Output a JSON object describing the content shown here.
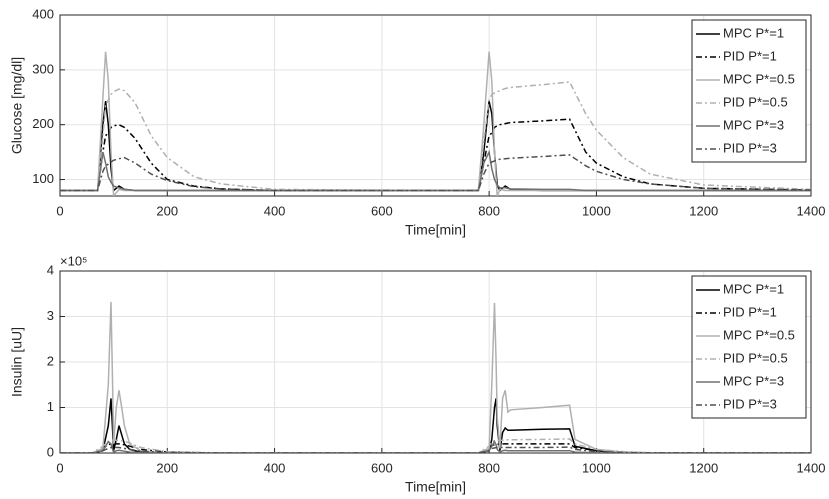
{
  "chart_data": [
    {
      "type": "line",
      "x_label": "Time[min]",
      "y_label": "Glucose [mg/dl]",
      "x": [
        0,
        70,
        80,
        85,
        90,
        95,
        100,
        110,
        120,
        140,
        170,
        200,
        250,
        300,
        400,
        700,
        780,
        790,
        800,
        805,
        810,
        815,
        820,
        830,
        840,
        900,
        950,
        980,
        1000,
        1050,
        1100,
        1200,
        1400
      ],
      "xlim": [
        0,
        1400
      ],
      "xticks": [
        0,
        200,
        400,
        600,
        800,
        1000,
        1200,
        1400
      ],
      "ylim": [
        70,
        400
      ],
      "yticks": [
        100,
        200,
        300,
        400
      ],
      "grid": true,
      "legend": "upper right",
      "series": [
        {
          "name": "MPC P*=1",
          "color": "#000000",
          "line_style": "solid",
          "values": [
            80,
            80,
            200,
            243,
            200,
            120,
            80,
            88,
            82,
            80,
            80,
            80,
            80,
            80,
            80,
            80,
            80,
            150,
            243,
            220,
            150,
            90,
            80,
            88,
            82,
            80,
            80,
            80,
            80,
            80,
            80,
            80,
            80
          ]
        },
        {
          "name": "PID P*=1",
          "color": "#000000",
          "line_style": "dashdot",
          "values": [
            80,
            80,
            150,
            180,
            185,
            195,
            198,
            200,
            195,
            175,
            130,
            100,
            88,
            83,
            80,
            80,
            80,
            130,
            180,
            185,
            195,
            198,
            200,
            202,
            204,
            207,
            210,
            150,
            130,
            105,
            92,
            84,
            81
          ]
        },
        {
          "name": "MPC P*=0.5",
          "color": "#b0b0b0",
          "line_style": "solid",
          "values": [
            80,
            80,
            250,
            333,
            280,
            150,
            70,
            82,
            80,
            80,
            80,
            80,
            80,
            80,
            80,
            80,
            80,
            200,
            333,
            280,
            150,
            70,
            82,
            80,
            80,
            80,
            80,
            80,
            80,
            80,
            80,
            80,
            80
          ]
        },
        {
          "name": "PID P*=0.5",
          "color": "#b0b0b0",
          "line_style": "dashdot",
          "values": [
            80,
            80,
            180,
            235,
            245,
            255,
            260,
            265,
            262,
            240,
            180,
            140,
            105,
            92,
            82,
            80,
            80,
            170,
            245,
            255,
            258,
            260,
            262,
            266,
            268,
            273,
            278,
            220,
            190,
            140,
            110,
            90,
            82
          ]
        },
        {
          "name": "MPC P*=3",
          "color": "#707070",
          "line_style": "solid",
          "values": [
            80,
            80,
            150,
            130,
            105,
            95,
            88,
            85,
            82,
            80,
            80,
            80,
            80,
            80,
            80,
            80,
            80,
            130,
            150,
            120,
            100,
            90,
            85,
            85,
            83,
            82,
            82,
            80,
            80,
            80,
            80,
            80,
            80
          ]
        },
        {
          "name": "PID P*=3",
          "color": "#505050",
          "line_style": "dashdot",
          "values": [
            80,
            80,
            115,
            125,
            128,
            132,
            135,
            138,
            140,
            130,
            110,
            98,
            87,
            83,
            80,
            80,
            80,
            110,
            130,
            132,
            134,
            136,
            137,
            138,
            139,
            142,
            145,
            125,
            115,
            100,
            92,
            84,
            81
          ]
        }
      ]
    },
    {
      "type": "line",
      "x_label": "Time[min]",
      "y_label": "Insulin [uU]",
      "y_exponent": "×10⁵",
      "x": [
        0,
        60,
        80,
        90,
        95,
        98,
        100,
        105,
        110,
        115,
        120,
        130,
        150,
        200,
        300,
        780,
        800,
        805,
        810,
        813,
        815,
        820,
        825,
        830,
        835,
        840,
        900,
        950,
        960,
        1000,
        1050,
        1100,
        1400
      ],
      "xlim": [
        0,
        1400
      ],
      "xticks": [
        0,
        200,
        400,
        600,
        800,
        1000,
        1200,
        1400
      ],
      "ylim": [
        0,
        400000
      ],
      "yticks": [
        {
          "value": 0,
          "label": "0"
        },
        {
          "value": 100000,
          "label": "1"
        },
        {
          "value": 200000,
          "label": "2"
        },
        {
          "value": 300000,
          "label": "3"
        },
        {
          "value": 400000,
          "label": "4"
        }
      ],
      "grid": true,
      "legend": "upper right",
      "series": [
        {
          "name": "MPC P*=1",
          "color": "#000000",
          "line_style": "solid",
          "values": [
            0,
            0,
            5000,
            60000,
            120000,
            50000,
            5000,
            30000,
            60000,
            40000,
            20000,
            8000,
            2000,
            0,
            0,
            0,
            5000,
            30000,
            100000,
            120000,
            60000,
            5000,
            45000,
            55000,
            50000,
            50000,
            52000,
            53000,
            15000,
            5000,
            1000,
            0,
            0
          ]
        },
        {
          "name": "PID P*=1",
          "color": "#000000",
          "line_style": "dashdot",
          "values": [
            0,
            0,
            10000,
            18000,
            20000,
            20000,
            20000,
            20000,
            20000,
            19000,
            18000,
            15000,
            8000,
            2000,
            0,
            0,
            10000,
            17000,
            18000,
            19000,
            19000,
            20000,
            20000,
            20000,
            20000,
            20000,
            20000,
            20000,
            12000,
            5000,
            2000,
            500,
            0
          ]
        },
        {
          "name": "MPC P*=0.5",
          "color": "#b0b0b0",
          "line_style": "solid",
          "values": [
            0,
            0,
            10000,
            150000,
            332000,
            150000,
            20000,
            100000,
            138000,
            100000,
            60000,
            20000,
            5000,
            0,
            0,
            0,
            10000,
            150000,
            330000,
            200000,
            80000,
            10000,
            120000,
            138000,
            90000,
            95000,
            100000,
            105000,
            30000,
            8000,
            2000,
            0,
            0
          ]
        },
        {
          "name": "PID P*=0.5",
          "color": "#b0b0b0",
          "line_style": "dashdot",
          "values": [
            0,
            0,
            15000,
            25000,
            28000,
            28000,
            28000,
            28000,
            28000,
            27000,
            26000,
            22000,
            12000,
            3000,
            0,
            0,
            15000,
            25000,
            27000,
            28000,
            28000,
            28000,
            28000,
            29000,
            29000,
            29000,
            30000,
            31000,
            20000,
            8000,
            3000,
            500,
            0
          ]
        },
        {
          "name": "MPC P*=3",
          "color": "#707070",
          "line_style": "solid",
          "values": [
            0,
            0,
            5000,
            25000,
            20000,
            8000,
            2000,
            5000,
            6000,
            5000,
            4000,
            2000,
            500,
            0,
            0,
            0,
            5000,
            15000,
            25000,
            18000,
            8000,
            2000,
            5000,
            6000,
            5000,
            5000,
            5000,
            5000,
            2000,
            500,
            0,
            0,
            0
          ]
        },
        {
          "name": "PID P*=3",
          "color": "#505050",
          "line_style": "dashdot",
          "values": [
            0,
            0,
            5000,
            10000,
            12000,
            12000,
            12000,
            12000,
            12000,
            11000,
            10000,
            8000,
            4000,
            1000,
            0,
            0,
            5000,
            10000,
            11000,
            12000,
            12000,
            12000,
            12000,
            12000,
            12000,
            12000,
            12000,
            13000,
            8000,
            3000,
            1000,
            200,
            0
          ]
        }
      ]
    }
  ]
}
